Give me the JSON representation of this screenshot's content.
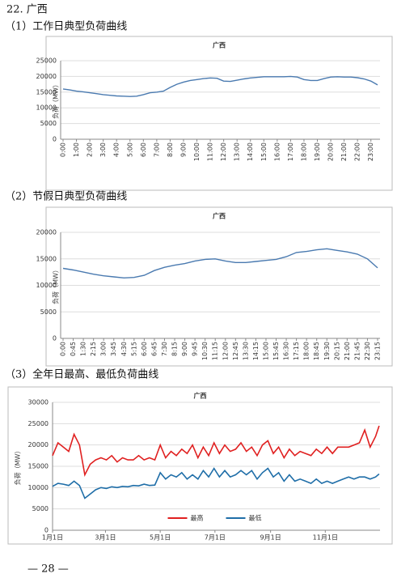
{
  "heading": "22. 广西",
  "captions": [
    "（1）工作日典型负荷曲线",
    "（2）节假日典型负荷曲线",
    "（3）全年日最高、最低负荷曲线"
  ],
  "page_number": "— 28 —",
  "chart_data": [
    {
      "type": "line",
      "title": "广西",
      "y_label": "负荷（MW）",
      "color": "#4a7ab0",
      "grid": true,
      "categories": [
        "0:00",
        null,
        "1:00",
        null,
        "2:00",
        null,
        "3:00",
        null,
        "4:00",
        null,
        "5:00",
        null,
        "6:00",
        null,
        "7:00",
        null,
        "8:00",
        null,
        "9:00",
        null,
        "10:00",
        null,
        "11:00",
        null,
        "12:00",
        null,
        "13:00",
        null,
        "14:00",
        null,
        "15:00",
        null,
        "16:00",
        null,
        "17:00",
        null,
        "18:00",
        null,
        "19:00",
        null,
        "20:00",
        null,
        "21:00",
        null,
        "22:00",
        null,
        "23:00",
        null
      ],
      "values": [
        16000,
        15700,
        15300,
        15100,
        14800,
        14500,
        14200,
        14000,
        13800,
        13700,
        13600,
        13700,
        14200,
        14800,
        15000,
        15300,
        16500,
        17500,
        18200,
        18700,
        19000,
        19300,
        19500,
        19400,
        18500,
        18400,
        18800,
        19200,
        19500,
        19700,
        19900,
        19900,
        19900,
        19900,
        20000,
        19800,
        19000,
        18700,
        18700,
        19300,
        19800,
        19900,
        19800,
        19800,
        19600,
        19200,
        18500,
        17300
      ],
      "ylim": [
        0,
        25000
      ],
      "yticks": [
        0,
        5000,
        10000,
        15000,
        20000,
        25000
      ]
    },
    {
      "type": "line",
      "title": "广西",
      "y_label": "负荷（MW）",
      "color": "#4a7ab0",
      "grid": true,
      "categories": [
        "0:00",
        "0:45",
        "1:30",
        "2:15",
        "3:00",
        "3:45",
        "4:30",
        "5:15",
        "6:00",
        "6:45",
        "7:30",
        "8:15",
        "9:00",
        "9:45",
        "10:30",
        "11:15",
        "12:00",
        "12:45",
        "13:30",
        "14:15",
        "15:00",
        "15:45",
        "16:30",
        "17:15",
        "18:00",
        "18:45",
        "19:30",
        "20:15",
        "21:00",
        "21:45",
        "22:30",
        "23:15"
      ],
      "values": [
        13200,
        12900,
        12500,
        12100,
        11800,
        11600,
        11400,
        11500,
        11900,
        12800,
        13400,
        13800,
        14100,
        14600,
        14900,
        15000,
        14600,
        14300,
        14300,
        14500,
        14700,
        14900,
        15400,
        16200,
        16400,
        16700,
        16900,
        16600,
        16300,
        15900,
        15000,
        13300
      ],
      "ylim": [
        0,
        20000
      ],
      "yticks": [
        0,
        5000,
        10000,
        15000,
        20000
      ]
    },
    {
      "type": "line",
      "title": "广西",
      "y_label": "负荷（MW）",
      "grid": true,
      "legend": "bottom",
      "x": [
        1,
        7,
        13,
        19,
        25,
        31,
        37,
        43,
        49,
        55,
        61,
        67,
        73,
        79,
        85,
        91,
        97,
        103,
        109,
        115,
        121,
        127,
        133,
        139,
        145,
        151,
        157,
        163,
        169,
        175,
        181,
        187,
        193,
        199,
        205,
        211,
        217,
        223,
        229,
        235,
        241,
        247,
        253,
        259,
        265,
        271,
        277,
        283,
        289,
        295,
        301,
        307,
        313,
        319,
        325,
        331,
        337,
        343,
        349,
        355,
        361,
        365
      ],
      "series": [
        {
          "name": "最高",
          "color": "#e02020",
          "values": [
            17500,
            20500,
            19500,
            18500,
            22500,
            20000,
            13000,
            15500,
            16500,
            17000,
            16500,
            17500,
            16000,
            17000,
            16500,
            16500,
            17500,
            16500,
            17000,
            16500,
            20000,
            17000,
            18500,
            17500,
            19000,
            18000,
            20000,
            17000,
            19500,
            17500,
            20500,
            18000,
            20000,
            18500,
            19000,
            20500,
            18500,
            19500,
            17500,
            20000,
            21000,
            18000,
            19500,
            17000,
            19000,
            17500,
            18500,
            18000,
            17500,
            19000,
            18000,
            19500,
            18000,
            19500,
            19500,
            19500,
            20000,
            20500,
            23500,
            19500,
            22000,
            24500
          ]
        },
        {
          "name": "最低",
          "color": "#1f6ea8",
          "values": [
            10300,
            11000,
            10800,
            10500,
            11500,
            10500,
            7500,
            8500,
            9500,
            10000,
            9800,
            10200,
            10000,
            10300,
            10200,
            10500,
            10400,
            10800,
            10500,
            10600,
            13500,
            12000,
            13000,
            12500,
            13500,
            12000,
            13000,
            12000,
            14000,
            12500,
            14500,
            12500,
            14000,
            12500,
            13000,
            14000,
            13000,
            14000,
            12000,
            13500,
            14500,
            12500,
            13500,
            11500,
            13000,
            11500,
            12000,
            11500,
            11000,
            12000,
            11000,
            11500,
            11000,
            11500,
            12000,
            12500,
            12000,
            12500,
            12500,
            12000,
            12500,
            13200
          ]
        }
      ],
      "xlim": [
        1,
        366
      ],
      "xticks": [
        {
          "value": 1,
          "label": "1月1日"
        },
        {
          "value": 60,
          "label": "3月1日"
        },
        {
          "value": 121,
          "label": "5月1日"
        },
        {
          "value": 182,
          "label": "7月1日"
        },
        {
          "value": 244,
          "label": "9月1日"
        },
        {
          "value": 305,
          "label": "11月1日"
        }
      ],
      "ylim": [
        0,
        30000
      ],
      "yticks": [
        0,
        5000,
        10000,
        15000,
        20000,
        25000,
        30000
      ]
    }
  ]
}
